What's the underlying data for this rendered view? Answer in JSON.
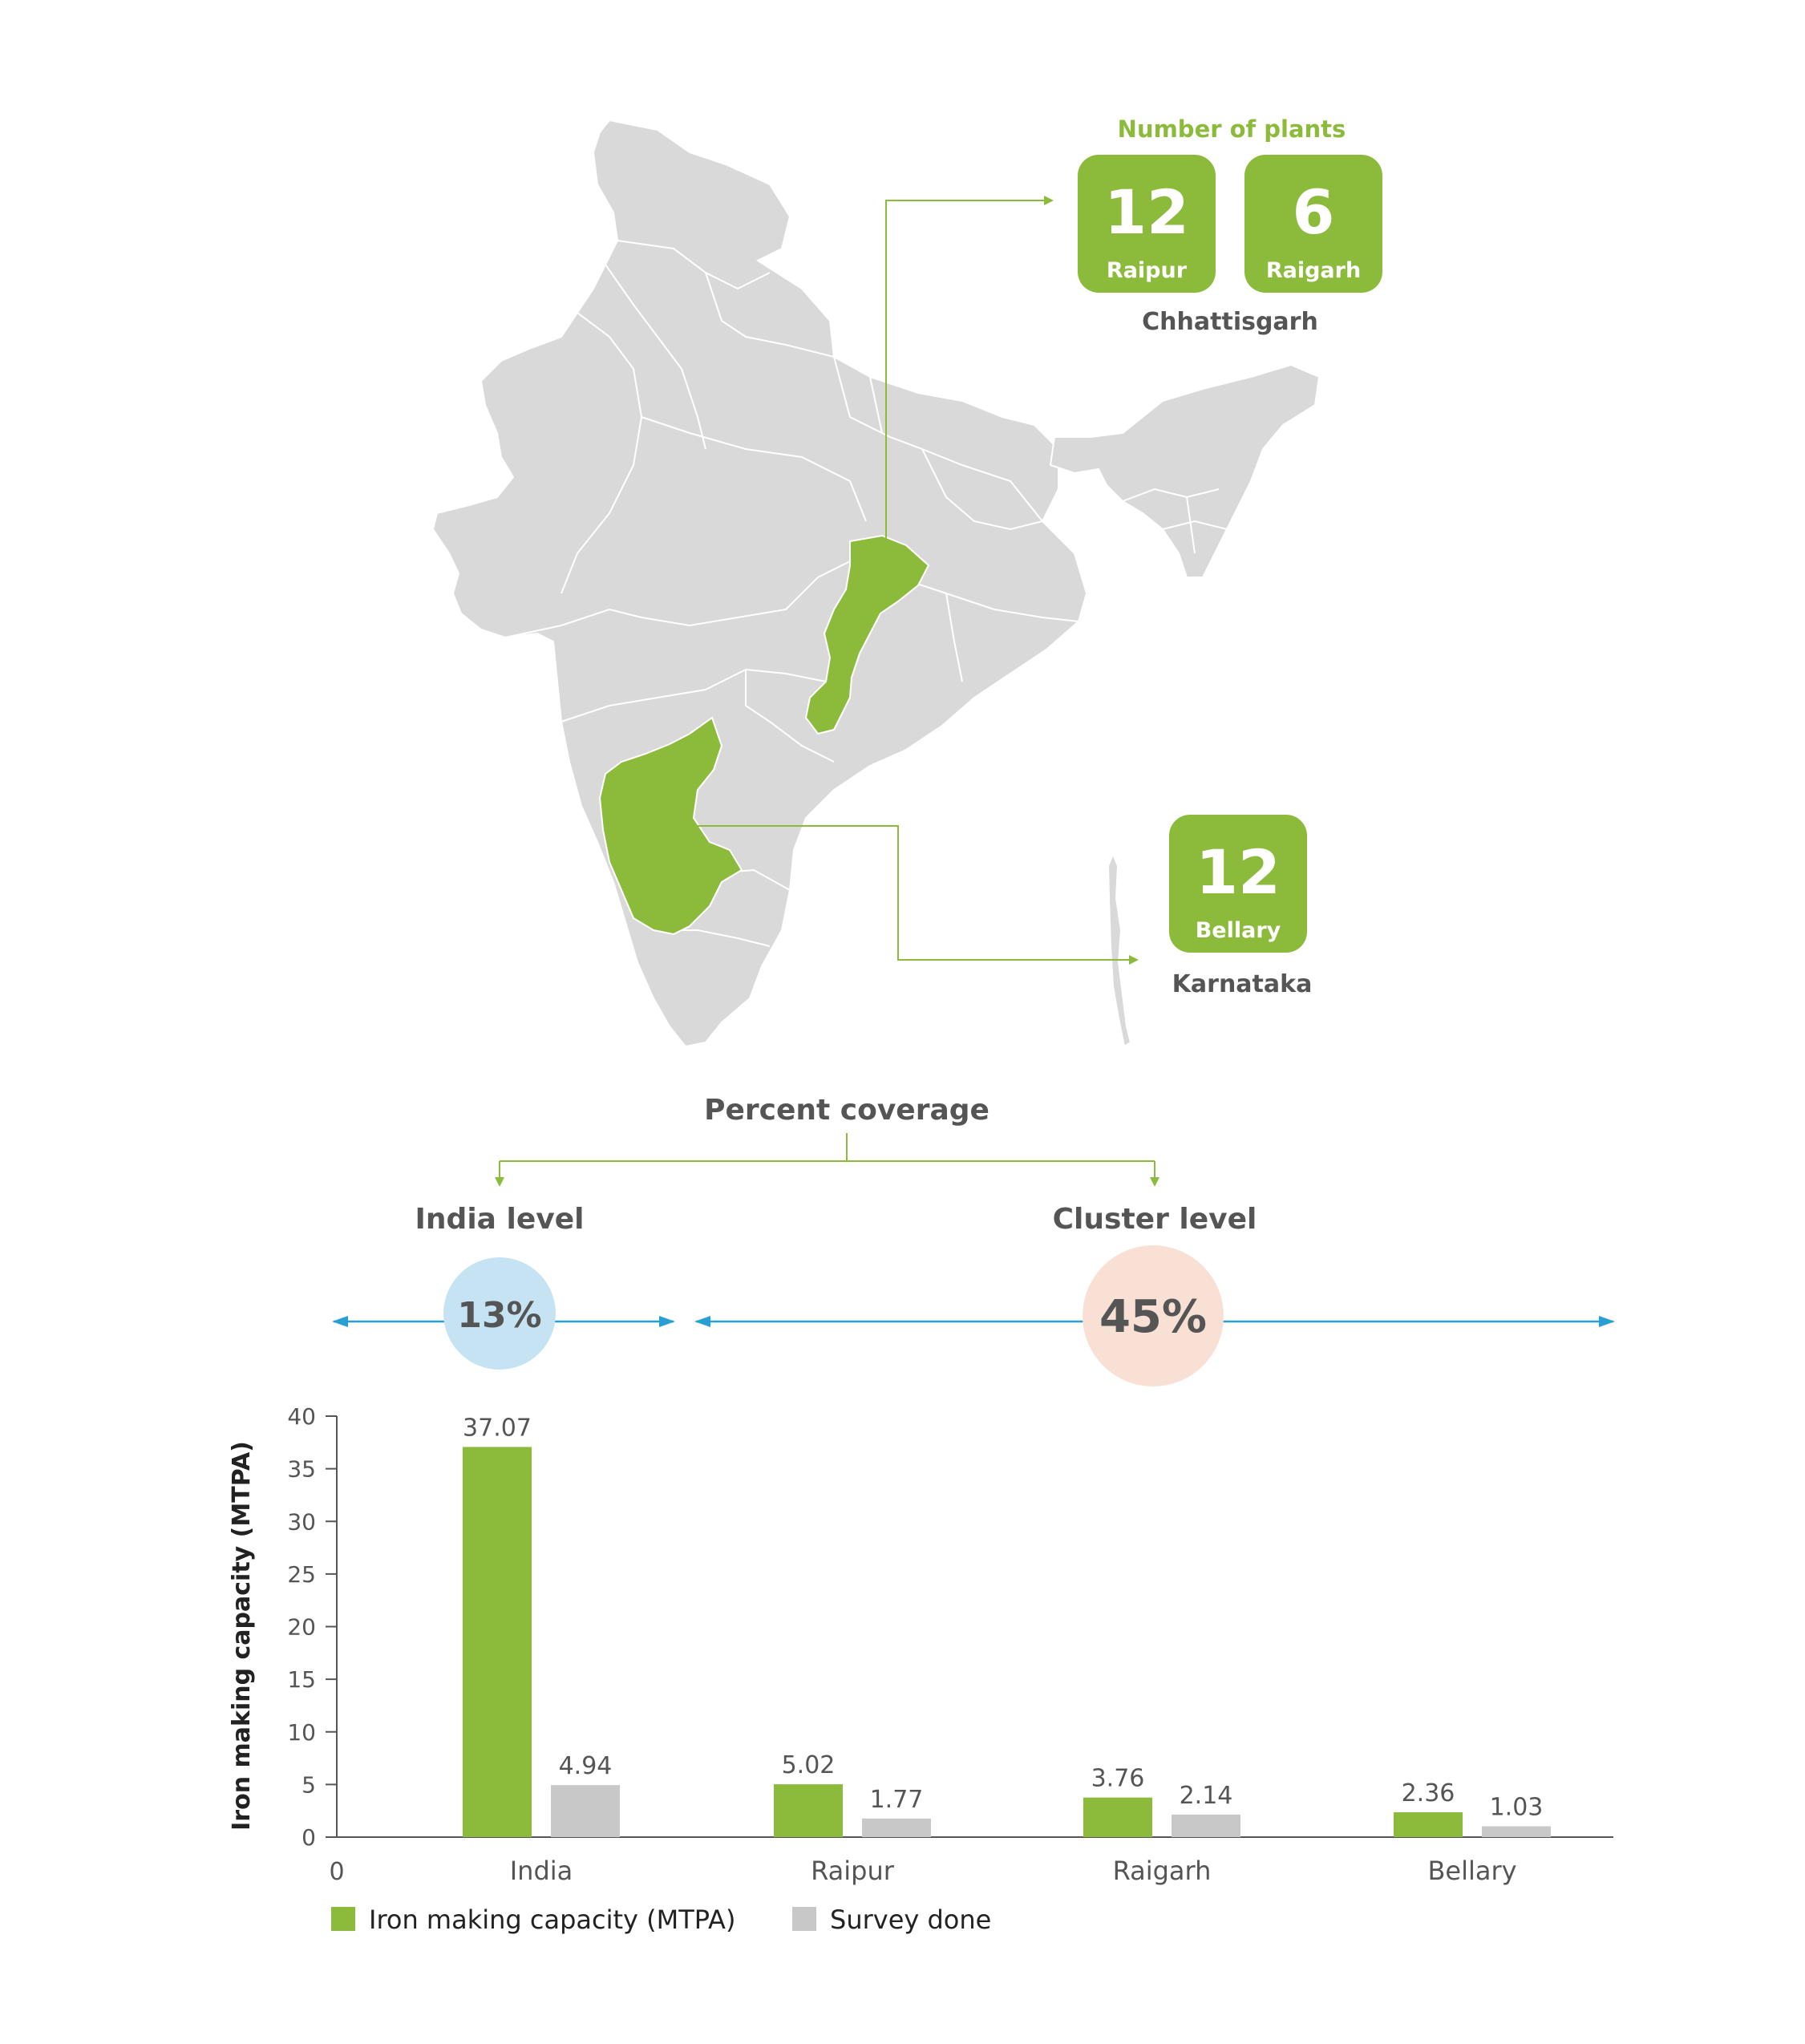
{
  "colors": {
    "green": "#8cbb3c",
    "gray_bar": "#c8c8c8",
    "map_gray": "#d9d9d9",
    "blue_arrow": "#2a9fd6",
    "india_circle": "#c6e3f4",
    "cluster_circle": "#f8e1d4",
    "text_dark": "#555555"
  },
  "plants": {
    "heading": "Number of plants",
    "chhattisgarh": {
      "state_label": "Chhattisgarh",
      "cards": [
        {
          "count": "12",
          "name": "Raipur"
        },
        {
          "count": "6",
          "name": "Raigarh"
        }
      ]
    },
    "karnataka": {
      "state_label": "Karnataka",
      "cards": [
        {
          "count": "12",
          "name": "Bellary"
        }
      ]
    }
  },
  "coverage": {
    "title": "Percent coverage",
    "india_label": "India level",
    "india_value": "13%",
    "cluster_label": "Cluster level",
    "cluster_value": "45%"
  },
  "chart_data": {
    "type": "bar",
    "ylabel": "Iron making capacity (MTPA)",
    "origin_label": "0",
    "categories": [
      "India",
      "Raipur",
      "Raigarh",
      "Bellary"
    ],
    "series": [
      {
        "name": "Iron making capacity (MTPA)",
        "color": "#8cbb3c",
        "values": [
          37.07,
          5.02,
          3.76,
          2.36
        ],
        "labels": [
          "37.07",
          "5.02",
          "3.76",
          "2.36"
        ]
      },
      {
        "name": "Survey done",
        "color": "#c8c8c8",
        "values": [
          4.94,
          1.77,
          2.14,
          1.03
        ],
        "labels": [
          "4.94",
          "1.77",
          "2.14",
          "1.03"
        ]
      }
    ],
    "ylim": [
      0,
      40
    ],
    "yticks": [
      0,
      5,
      10,
      15,
      20,
      25,
      30,
      35,
      40
    ],
    "grid": false,
    "legend_position": "bottom-left"
  }
}
